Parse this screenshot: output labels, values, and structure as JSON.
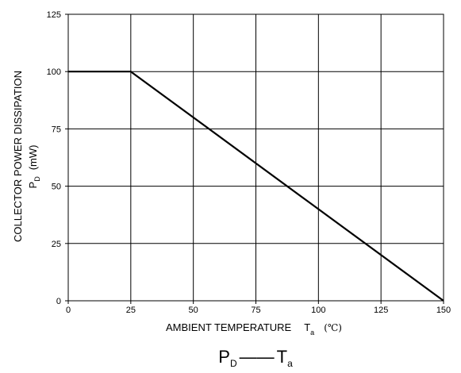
{
  "chart_data": {
    "type": "line",
    "title": "",
    "xlabel": {
      "main": "AMBIENT TEMPERATURE",
      "symbol": "T",
      "subscript": "a",
      "unit": "(℃)"
    },
    "ylabel": {
      "line1": "COLLECTOR POWER DISSIPATION",
      "symbol": "P",
      "subscript": "D",
      "unit": "(mW)"
    },
    "caption": {
      "left": "P",
      "left_sub": "D",
      "dash": "——",
      "right": "T",
      "right_sub": "a"
    },
    "xlim": [
      0,
      150
    ],
    "ylim": [
      0,
      125
    ],
    "xticks": [
      0,
      25,
      50,
      75,
      100,
      125,
      150
    ],
    "yticks": [
      0,
      25,
      50,
      75,
      100,
      125
    ],
    "grid": true,
    "legend": "none",
    "series": [
      {
        "x": [
          0,
          25,
          150
        ],
        "y": [
          100,
          100,
          0
        ]
      }
    ]
  }
}
